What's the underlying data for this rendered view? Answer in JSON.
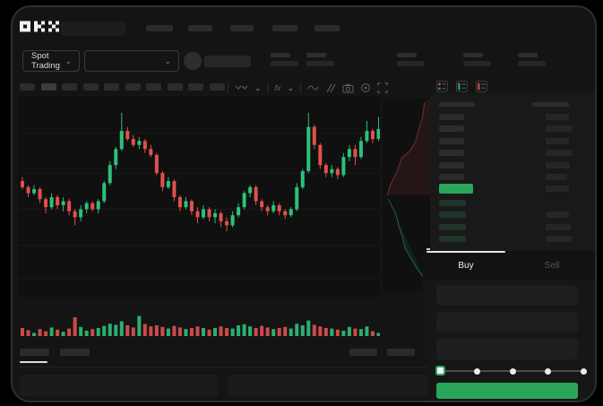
{
  "window": {
    "brand": "OKX"
  },
  "header": {
    "nav_placeholders": [
      30,
      27,
      26,
      28,
      28
    ],
    "market_dropdown": {
      "label": "Spot Trading",
      "chevron": "⌄"
    },
    "pair_dropdown": {
      "value": "",
      "chevron": "⌄"
    },
    "stat_placeholder_x": [
      288,
      328,
      429,
      503,
      564
    ]
  },
  "toolbar": {
    "timeframe_count": 10,
    "active_index": 1,
    "fx_label": "fx",
    "icon_names": [
      "chart-style-icon",
      "chevron-down-icon",
      "indicators-fx-icon",
      "chevron-down-icon",
      "line-tool-icon",
      "compare-icon",
      "camera-icon",
      "settings-icon",
      "fullscreen-icon"
    ]
  },
  "chart_data": [
    {
      "type": "candlestick",
      "title": "",
      "xlabel": "",
      "ylabel": "",
      "ylim": [
        0,
        100
      ],
      "grid_values": [
        82,
        62,
        44,
        26,
        9
      ],
      "up_color": "#2fbf7b",
      "down_color": "#e2504c",
      "candles": [
        [
          58,
          60,
          54,
          55
        ],
        [
          55,
          56,
          50,
          52
        ],
        [
          52,
          56,
          51,
          54
        ],
        [
          54,
          55,
          47,
          49
        ],
        [
          49,
          50,
          42,
          45
        ],
        [
          45,
          52,
          44,
          50
        ],
        [
          50,
          51,
          44,
          46
        ],
        [
          46,
          50,
          43,
          48
        ],
        [
          48,
          49,
          41,
          43
        ],
        [
          43,
          44,
          36,
          40
        ],
        [
          40,
          46,
          38,
          44
        ],
        [
          44,
          48,
          42,
          47
        ],
        [
          47,
          48,
          43,
          44
        ],
        [
          44,
          49,
          42,
          48
        ],
        [
          48,
          58,
          47,
          57
        ],
        [
          57,
          68,
          56,
          66
        ],
        [
          66,
          75,
          64,
          74
        ],
        [
          74,
          92,
          73,
          83
        ],
        [
          83,
          85,
          78,
          79
        ],
        [
          79,
          81,
          75,
          76
        ],
        [
          76,
          80,
          74,
          78
        ],
        [
          78,
          79,
          72,
          74
        ],
        [
          74,
          76,
          70,
          71
        ],
        [
          71,
          72,
          61,
          62
        ],
        [
          62,
          63,
          53,
          55
        ],
        [
          55,
          60,
          54,
          58
        ],
        [
          58,
          59,
          48,
          50
        ],
        [
          50,
          51,
          43,
          45
        ],
        [
          45,
          50,
          44,
          48
        ],
        [
          48,
          49,
          41,
          43
        ],
        [
          43,
          45,
          37,
          40
        ],
        [
          40,
          46,
          39,
          44
        ],
        [
          44,
          45,
          38,
          40
        ],
        [
          40,
          44,
          37,
          42
        ],
        [
          42,
          43,
          35,
          38
        ],
        [
          38,
          40,
          33,
          36
        ],
        [
          36,
          43,
          35,
          41
        ],
        [
          41,
          47,
          40,
          45
        ],
        [
          45,
          53,
          44,
          52
        ],
        [
          52,
          56,
          50,
          55
        ],
        [
          55,
          56,
          46,
          48
        ],
        [
          48,
          49,
          43,
          45
        ],
        [
          45,
          46,
          41,
          43
        ],
        [
          43,
          48,
          42,
          46
        ],
        [
          46,
          47,
          41,
          43
        ],
        [
          43,
          44,
          39,
          41
        ],
        [
          41,
          45,
          40,
          44
        ],
        [
          44,
          57,
          43,
          55
        ],
        [
          55,
          64,
          54,
          63
        ],
        [
          63,
          92,
          62,
          85
        ],
        [
          85,
          86,
          74,
          76
        ],
        [
          76,
          77,
          64,
          66
        ],
        [
          66,
          67,
          60,
          62
        ],
        [
          62,
          66,
          60,
          64
        ],
        [
          64,
          65,
          59,
          61
        ],
        [
          61,
          72,
          60,
          70
        ],
        [
          70,
          76,
          68,
          74
        ],
        [
          74,
          76,
          66,
          70
        ],
        [
          70,
          80,
          69,
          78
        ],
        [
          78,
          88,
          77,
          83
        ],
        [
          83,
          84,
          77,
          79
        ],
        [
          79,
          90,
          78,
          84
        ]
      ]
    },
    {
      "type": "bar",
      "name": "volume",
      "colors": "follow_candles",
      "values": [
        30,
        22,
        12,
        26,
        18,
        32,
        24,
        16,
        28,
        70,
        34,
        20,
        26,
        30,
        38,
        46,
        42,
        55,
        40,
        32,
        75,
        45,
        36,
        40,
        34,
        28,
        38,
        32,
        26,
        30,
        36,
        30,
        24,
        30,
        36,
        30,
        28,
        40,
        44,
        36,
        30,
        38,
        32,
        26,
        30,
        34,
        28,
        46,
        40,
        58,
        42,
        36,
        30,
        28,
        24,
        20,
        34,
        28,
        26,
        36,
        18,
        12
      ]
    },
    {
      "type": "depth",
      "ask_color": "#e2504c",
      "bid_color": "#2fbf7b",
      "asks_points": [
        [
          88,
          2
        ],
        [
          84,
          10
        ],
        [
          76,
          16
        ],
        [
          70,
          22
        ],
        [
          58,
          27
        ],
        [
          40,
          31
        ],
        [
          30,
          38
        ],
        [
          16,
          45
        ],
        [
          10,
          50
        ]
      ],
      "bids_points": [
        [
          12,
          52
        ],
        [
          20,
          56
        ],
        [
          28,
          60
        ],
        [
          34,
          66
        ],
        [
          42,
          72
        ],
        [
          48,
          78
        ],
        [
          60,
          83
        ],
        [
          72,
          88
        ],
        [
          84,
          92
        ],
        [
          92,
          96
        ]
      ]
    }
  ],
  "order_book": {
    "view_icon_names": [
      "book-split-view-icon",
      "book-buys-view-icon",
      "book-sells-view-icon"
    ],
    "header": {
      "left_w": 40,
      "right_w": 41
    },
    "asks": [
      {
        "p": 28,
        "a": 26
      },
      {
        "p": 28,
        "a": 30
      },
      {
        "p": 28,
        "a": 26
      },
      {
        "p": 28,
        "a": 30
      },
      {
        "p": 28,
        "a": 27
      },
      {
        "p": 28,
        "a": 24
      }
    ],
    "last_price": {
      "highlight": "#2aa65a",
      "w": 38,
      "amount_w": 26
    },
    "bids": [
      {
        "p": 30,
        "a": 0
      },
      {
        "p": 30,
        "a": 26
      },
      {
        "p": 30,
        "a": 28
      },
      {
        "p": 30,
        "a": 30
      }
    ]
  },
  "trade_panel": {
    "tabs": [
      {
        "label": "Buy",
        "active": true
      },
      {
        "label": "Sell",
        "active": false
      }
    ],
    "input_count": 3,
    "slider": {
      "stops": 5,
      "active_stop": 0
    },
    "cta_color": "#2aa65a"
  },
  "bottom": {
    "tab_placeholders": [
      33,
      33
    ],
    "right_button_placeholders": [
      31,
      31
    ],
    "panel_placeholders": [
      221,
      222
    ]
  },
  "colors": {
    "up": "#2fbf7b",
    "down": "#e2504c",
    "accent_green": "#2aa65a",
    "app_bg": "#141414"
  }
}
